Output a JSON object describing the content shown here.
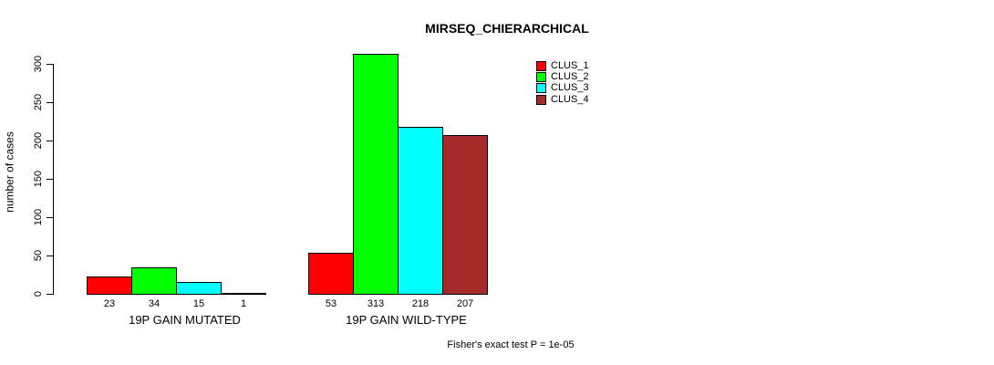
{
  "chart_data": {
    "type": "bar",
    "title": "MIRSEQ_CHIERARCHICAL",
    "ylabel": "number of cases",
    "xlabel": "",
    "categories": [
      "19P GAIN MUTATED",
      "19P GAIN WILD-TYPE"
    ],
    "series": [
      {
        "name": "CLUS_1",
        "color": "#FF0000",
        "values": [
          23,
          53
        ]
      },
      {
        "name": "CLUS_2",
        "color": "#00FF00",
        "values": [
          34,
          313
        ]
      },
      {
        "name": "CLUS_3",
        "color": "#00FFFF",
        "values": [
          15,
          218
        ]
      },
      {
        "name": "CLUS_4",
        "color": "#A52A2A",
        "values": [
          1,
          207
        ]
      }
    ],
    "yticks": [
      0,
      50,
      100,
      150,
      200,
      250,
      300
    ],
    "ylim": [
      0,
      300
    ],
    "bar_value_labels": true,
    "grid": false,
    "legend_position": "top-right",
    "annotation": "Fisher's exact test P = 1e-05",
    "text_color": "#000000",
    "axis_color": "#000000",
    "background_color": "#FFFFFF"
  }
}
